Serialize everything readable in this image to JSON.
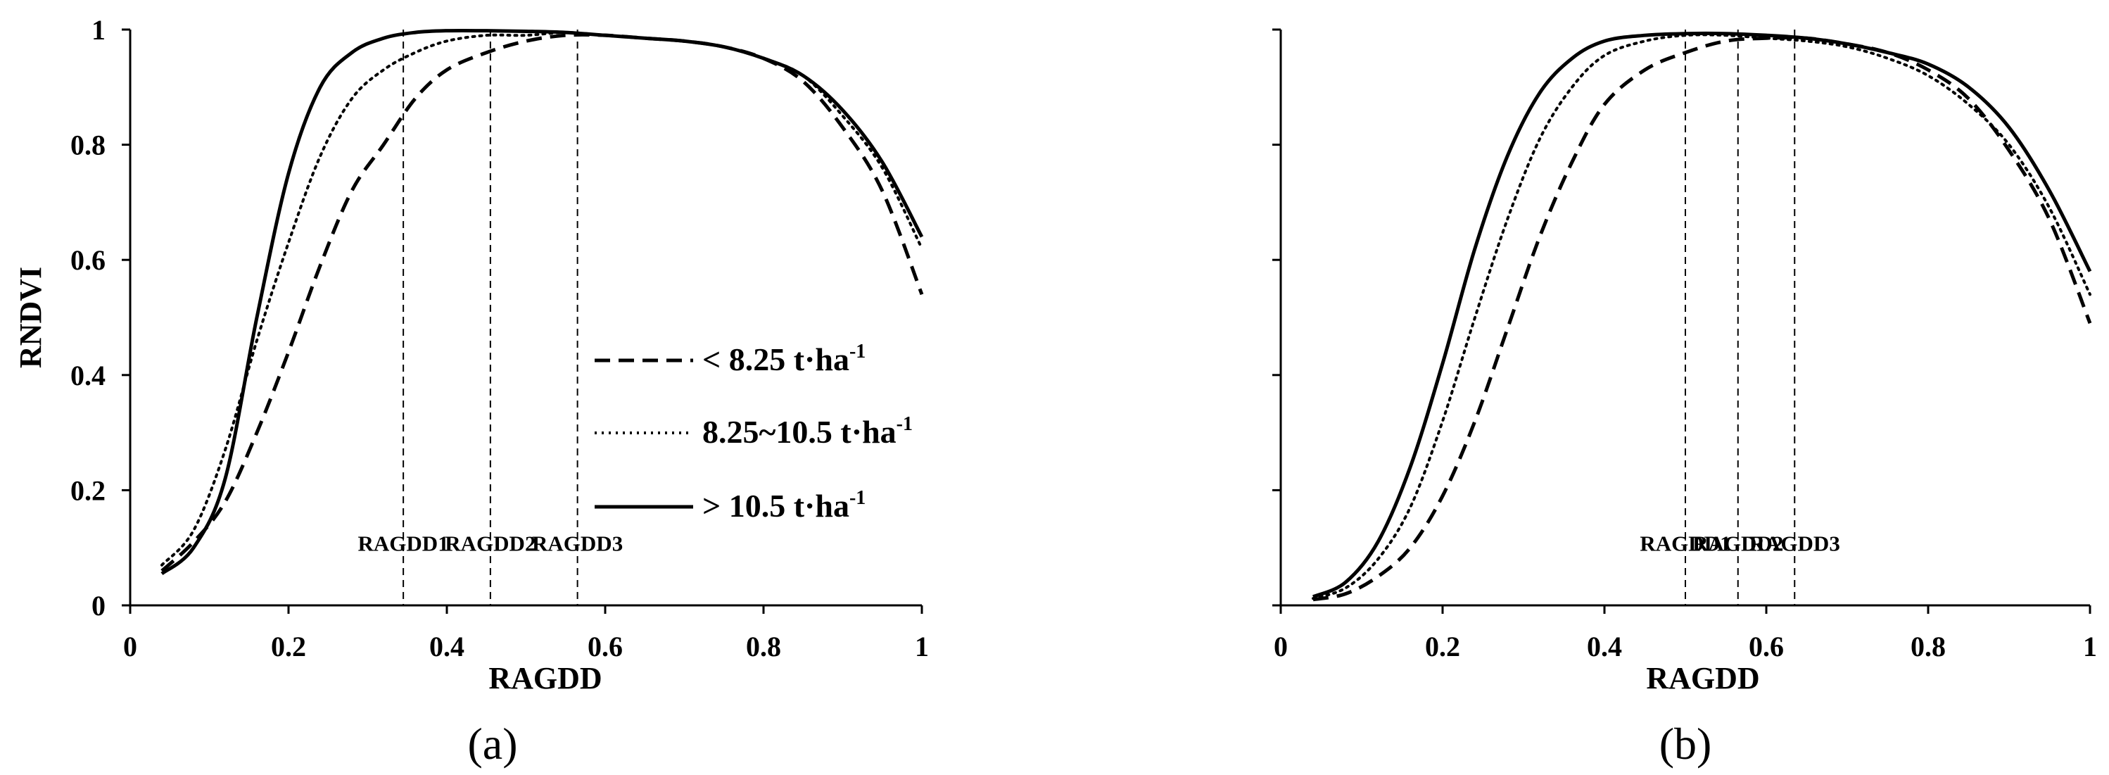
{
  "chart_data": [
    {
      "type": "line",
      "panel_label": "(a)",
      "xlabel": "RAGDD",
      "ylabel": "RNDVI",
      "xlim": [
        0,
        1
      ],
      "ylim": [
        0,
        1
      ],
      "xticks": [
        "0",
        "0.2",
        "0.4",
        "0.6",
        "0.8",
        "1"
      ],
      "yticks": [
        "0",
        "0.2",
        "0.4",
        "0.6",
        "0.8",
        "1"
      ],
      "grid": false,
      "legend": {
        "placement": "center-right",
        "entries": [
          {
            "text": "< 8.25 t·ha",
            "sup": "-1",
            "style": "dashed"
          },
          {
            "text": "8.25~10.5 t·ha",
            "sup": "-1",
            "style": "dotted"
          },
          {
            "text": "> 10.5 t·ha",
            "sup": "-1",
            "style": "solid"
          }
        ]
      },
      "markers": [
        {
          "label": "RAGDD1",
          "x": 0.345
        },
        {
          "label": "RAGDD2",
          "x": 0.455
        },
        {
          "label": "RAGDD3",
          "x": 0.565
        }
      ],
      "series": [
        {
          "style": "dashed",
          "x": [
            0.04,
            0.08,
            0.12,
            0.16,
            0.2,
            0.24,
            0.28,
            0.32,
            0.36,
            0.4,
            0.45,
            0.5,
            0.55,
            0.6,
            0.65,
            0.7,
            0.75,
            0.8,
            0.85,
            0.9,
            0.95,
            1.0
          ],
          "y": [
            0.06,
            0.11,
            0.18,
            0.3,
            0.44,
            0.59,
            0.72,
            0.8,
            0.88,
            0.93,
            0.96,
            0.98,
            0.99,
            0.99,
            0.985,
            0.98,
            0.97,
            0.95,
            0.91,
            0.83,
            0.72,
            0.54
          ]
        },
        {
          "style": "dotted",
          "x": [
            0.04,
            0.08,
            0.12,
            0.16,
            0.2,
            0.24,
            0.28,
            0.32,
            0.36,
            0.4,
            0.45,
            0.5,
            0.55,
            0.6,
            0.65,
            0.7,
            0.75,
            0.8,
            0.85,
            0.9,
            0.95,
            1.0
          ],
          "y": [
            0.07,
            0.13,
            0.27,
            0.46,
            0.63,
            0.78,
            0.88,
            0.93,
            0.96,
            0.98,
            0.99,
            0.99,
            0.995,
            0.99,
            0.985,
            0.98,
            0.97,
            0.95,
            0.92,
            0.85,
            0.76,
            0.62
          ]
        },
        {
          "style": "solid",
          "x": [
            0.04,
            0.08,
            0.12,
            0.16,
            0.2,
            0.24,
            0.28,
            0.32,
            0.36,
            0.4,
            0.45,
            0.5,
            0.55,
            0.6,
            0.65,
            0.7,
            0.75,
            0.8,
            0.85,
            0.9,
            0.95,
            1.0
          ],
          "y": [
            0.055,
            0.1,
            0.22,
            0.5,
            0.75,
            0.9,
            0.96,
            0.985,
            0.995,
            0.998,
            0.998,
            0.997,
            0.995,
            0.99,
            0.985,
            0.98,
            0.97,
            0.95,
            0.92,
            0.86,
            0.77,
            0.64
          ]
        }
      ]
    },
    {
      "type": "line",
      "panel_label": "(b)",
      "xlabel": "RAGDD",
      "ylabel": "",
      "xlim": [
        0,
        1
      ],
      "ylim": [
        0,
        1
      ],
      "xticks": [
        "0",
        "0.2",
        "0.4",
        "0.6",
        "0.8",
        "1"
      ],
      "yticks": [],
      "grid": false,
      "markers": [
        {
          "label": "RAGDD1",
          "x": 0.5
        },
        {
          "label": "RAGDD2",
          "x": 0.565
        },
        {
          "label": "RAGDD3",
          "x": 0.635
        }
      ],
      "series": [
        {
          "style": "dashed",
          "x": [
            0.04,
            0.08,
            0.12,
            0.16,
            0.2,
            0.24,
            0.28,
            0.32,
            0.36,
            0.4,
            0.45,
            0.5,
            0.55,
            0.6,
            0.65,
            0.7,
            0.75,
            0.8,
            0.85,
            0.9,
            0.95,
            1.0
          ],
          "y": [
            0.01,
            0.02,
            0.05,
            0.1,
            0.19,
            0.32,
            0.48,
            0.64,
            0.77,
            0.87,
            0.93,
            0.96,
            0.98,
            0.985,
            0.985,
            0.975,
            0.96,
            0.93,
            0.88,
            0.79,
            0.67,
            0.49
          ]
        },
        {
          "style": "dotted",
          "x": [
            0.04,
            0.08,
            0.12,
            0.16,
            0.2,
            0.24,
            0.28,
            0.32,
            0.36,
            0.4,
            0.45,
            0.5,
            0.55,
            0.6,
            0.65,
            0.7,
            0.75,
            0.8,
            0.85,
            0.9,
            0.95,
            1.0
          ],
          "y": [
            0.012,
            0.03,
            0.08,
            0.17,
            0.32,
            0.5,
            0.67,
            0.81,
            0.9,
            0.955,
            0.98,
            0.99,
            0.99,
            0.985,
            0.98,
            0.97,
            0.95,
            0.92,
            0.87,
            0.8,
            0.69,
            0.54
          ]
        },
        {
          "style": "solid",
          "x": [
            0.04,
            0.08,
            0.12,
            0.16,
            0.2,
            0.24,
            0.28,
            0.32,
            0.36,
            0.4,
            0.45,
            0.5,
            0.55,
            0.6,
            0.65,
            0.7,
            0.75,
            0.8,
            0.85,
            0.9,
            0.95,
            1.0
          ],
          "y": [
            0.015,
            0.04,
            0.11,
            0.24,
            0.42,
            0.62,
            0.78,
            0.89,
            0.95,
            0.98,
            0.99,
            0.993,
            0.993,
            0.99,
            0.985,
            0.975,
            0.96,
            0.94,
            0.9,
            0.83,
            0.72,
            0.58
          ]
        }
      ]
    }
  ]
}
